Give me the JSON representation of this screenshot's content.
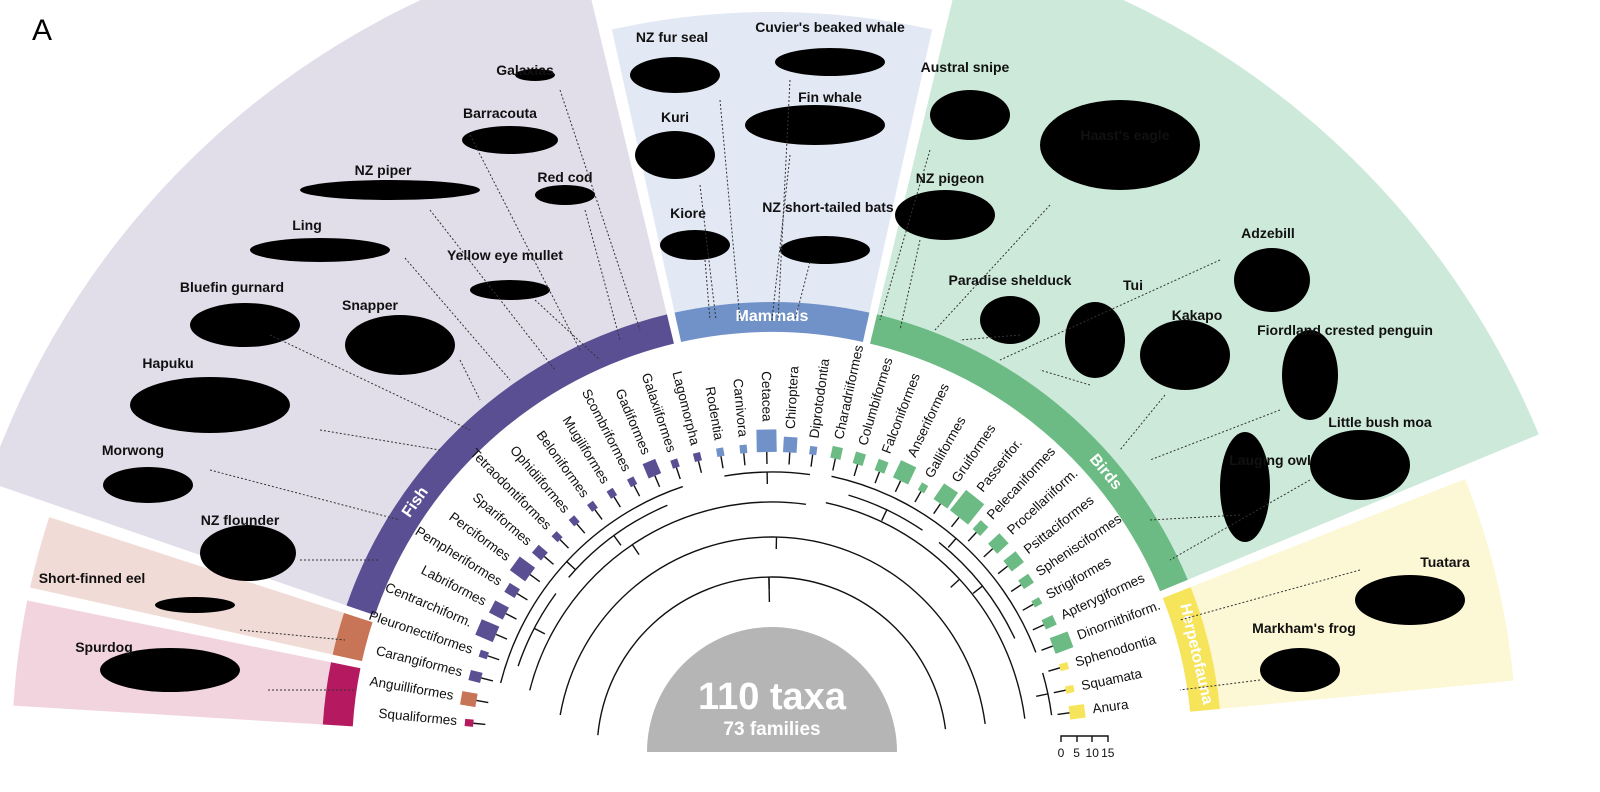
{
  "panel_label": "A",
  "center": {
    "taxa": "110 taxa",
    "families": "73 families"
  },
  "scale_bar": {
    "ticks": [
      "0",
      "5",
      "10",
      "15"
    ]
  },
  "groups": {
    "fish": {
      "label": "Fish",
      "color": "#5b4f93",
      "bg": "#e1deea"
    },
    "mammals": {
      "label": "Mammals",
      "color": "#7192c9",
      "bg": "#e2e8f4"
    },
    "birds": {
      "label": "Birds",
      "color": "#6cbb84",
      "bg": "#cde9da"
    },
    "herpetofauna": {
      "label": "Herpetofauna",
      "color": "#f6e45a",
      "bg": "#fcf7d4"
    },
    "eel": {
      "color": "#c87456",
      "bg": "#f1dbd6"
    },
    "shark": {
      "color": "#b5195f",
      "bg": "#f2d4df"
    }
  },
  "orders": [
    {
      "name": "Squaliformes",
      "group": "shark",
      "size": 1
    },
    {
      "name": "Anguilliformes",
      "group": "eel",
      "size": 3
    },
    {
      "name": "Carangiformes",
      "group": "fish",
      "size": 2
    },
    {
      "name": "Pleuronectiformes",
      "group": "fish",
      "size": 1
    },
    {
      "name": "Centrarchiform.",
      "group": "fish",
      "size": 4
    },
    {
      "name": "Labriformes",
      "group": "fish",
      "size": 3
    },
    {
      "name": "Pempheriformes",
      "group": "fish",
      "size": 2
    },
    {
      "name": "Perciformes",
      "group": "fish",
      "size": 4
    },
    {
      "name": "Spariformes",
      "group": "fish",
      "size": 2
    },
    {
      "name": "Tetraodontiformes",
      "group": "fish",
      "size": 1
    },
    {
      "name": "Ophidiiformes",
      "group": "fish",
      "size": 1
    },
    {
      "name": "Beloniformes",
      "group": "fish",
      "size": 1
    },
    {
      "name": "Mugiliformes",
      "group": "fish",
      "size": 1
    },
    {
      "name": "Scombriformes",
      "group": "fish",
      "size": 1
    },
    {
      "name": "Gadiformes",
      "group": "fish",
      "size": 3
    },
    {
      "name": "Galaxiiformes",
      "group": "fish",
      "size": 1
    },
    {
      "name": "Lagomorpha",
      "group": "fish",
      "size": 1
    },
    {
      "name": "Rodentia",
      "group": "mammals",
      "size": 1
    },
    {
      "name": "Carnivora",
      "group": "mammals",
      "size": 1
    },
    {
      "name": "Cetacea",
      "group": "mammals",
      "size": 5
    },
    {
      "name": "Chiroptera",
      "group": "mammals",
      "size": 3
    },
    {
      "name": "Diprotodontia",
      "group": "mammals",
      "size": 1
    },
    {
      "name": "Charadriiformes",
      "group": "birds",
      "size": 2
    },
    {
      "name": "Columbiformes",
      "group": "birds",
      "size": 2
    },
    {
      "name": "Falconiformes",
      "group": "birds",
      "size": 2
    },
    {
      "name": "Anseriformes",
      "group": "birds",
      "size": 4
    },
    {
      "name": "Galliformes",
      "group": "birds",
      "size": 1
    },
    {
      "name": "Gruiformes",
      "group": "birds",
      "size": 4
    },
    {
      "name": "Passerifor.",
      "group": "birds",
      "size": 6
    },
    {
      "name": "Pelecaniformes",
      "group": "birds",
      "size": 2
    },
    {
      "name": "Procellariiform.",
      "group": "birds",
      "size": 3
    },
    {
      "name": "Psittaciformes",
      "group": "birds",
      "size": 3
    },
    {
      "name": "Sphenisciformes",
      "group": "birds",
      "size": 2
    },
    {
      "name": "Strigiformes",
      "group": "birds",
      "size": 1
    },
    {
      "name": "Apterygiformes",
      "group": "birds",
      "size": 2
    },
    {
      "name": "Dinornithiform.",
      "group": "birds",
      "size": 4
    },
    {
      "name": "Sphenodontia",
      "group": "herpetofauna",
      "size": 1
    },
    {
      "name": "Squamata",
      "group": "herpetofauna",
      "size": 1
    },
    {
      "name": "Anura",
      "group": "herpetofauna",
      "size": 3
    }
  ],
  "animals": {
    "fish": [
      "Galaxias",
      "Barracouta",
      "NZ piper",
      "Red cod",
      "Ling",
      "Yellow eye mullet",
      "Bluefin gurnard",
      "Snapper",
      "Hapuku",
      "Morwong",
      "NZ flounder"
    ],
    "eel": [
      "Short-finned eel"
    ],
    "shark": [
      "Spurdog"
    ],
    "mammals": [
      "NZ fur seal",
      "Cuvier's beaked whale",
      "Kuri",
      "Fin whale",
      "Kiore",
      "NZ short-tailed bats"
    ],
    "birds": [
      "Austral snipe",
      "Haast's eagle",
      "NZ pigeon",
      "Paradise shelduck",
      "Adzebill",
      "Tui",
      "Kakapo",
      "Fiordland crested penguin",
      "Little bush moa",
      "Lauging owl"
    ],
    "herpetofauna": [
      "Tuatara",
      "Markham's frog"
    ]
  }
}
